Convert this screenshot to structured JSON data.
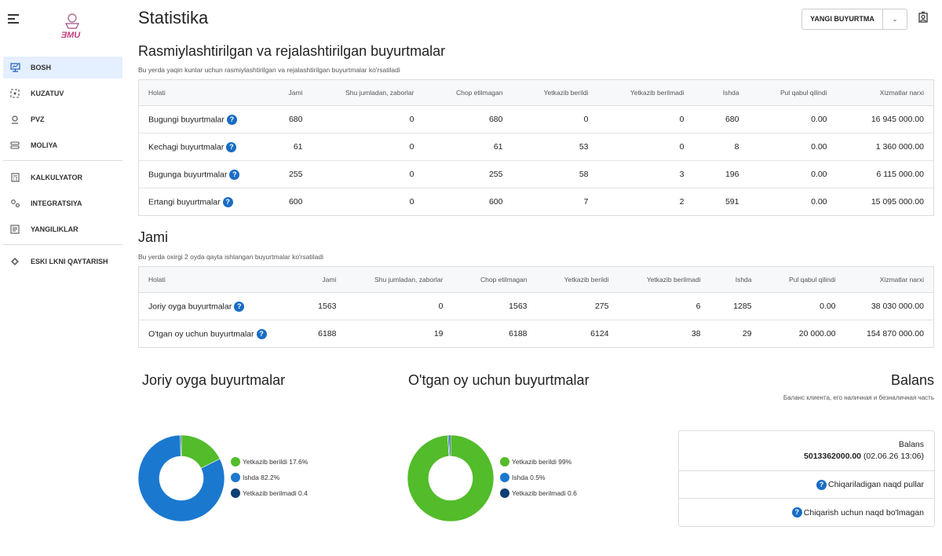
{
  "brand": {
    "logo_text": "EMU"
  },
  "sidebar": {
    "items": [
      {
        "label": "BOSH",
        "icon": "home-icon"
      },
      {
        "label": "KUZATUV",
        "icon": "tracking-icon"
      },
      {
        "label": "PVZ",
        "icon": "location-pin-icon"
      },
      {
        "label": "MOLIYA",
        "icon": "finance-icon"
      },
      {
        "label": "KALKULYATOR",
        "icon": "calculator-icon"
      },
      {
        "label": "INTEGRATSIYA",
        "icon": "integration-icon"
      },
      {
        "label": "YANGILIKLAR",
        "icon": "news-icon"
      },
      {
        "label": "ESKI LKNI QAYTARISH",
        "icon": "restore-icon"
      }
    ]
  },
  "header": {
    "title": "Statistika",
    "new_order_label": "YANGI BUYURTMA"
  },
  "section1": {
    "title": "Rasmiylashtirilgan va rejalashtirilgan buyurtmalar",
    "subtitle": "Bu yerda yaqin kunlar uchun rasmiylashtirilgan va rejalashtirilgan buyurtmalar ko'rsatiladi",
    "columns": [
      "Holati",
      "Jami",
      "Shu jumladan, zaborlar",
      "Chop etilmagan",
      "Yetkazib berildi",
      "Yetkazib berilmadi",
      "Ishda",
      "Pul qabul qilindi",
      "Xizmatlar narxi"
    ],
    "rows": [
      [
        "Bugungi buyurtmalar",
        "680",
        "0",
        "680",
        "0",
        "0",
        "680",
        "0.00",
        "16 945 000.00"
      ],
      [
        "Kechagi buyurtmalar",
        "61",
        "0",
        "61",
        "53",
        "0",
        "8",
        "0.00",
        "1 360 000.00"
      ],
      [
        "Bugunga buyurtmalar",
        "255",
        "0",
        "255",
        "58",
        "3",
        "196",
        "0.00",
        "6 115 000.00"
      ],
      [
        "Ertangi buyurtmalar",
        "600",
        "0",
        "600",
        "7",
        "2",
        "591",
        "0.00",
        "15 095 000.00"
      ]
    ]
  },
  "section2": {
    "title": "Jami",
    "subtitle": "Bu yerda oxirgi 2 oyda qayta ishlangan buyurtmalar ko'rsatiladi",
    "columns": [
      "Holati",
      "Jami",
      "Shu jumladan, zaborlar",
      "Chop etilmagan",
      "Yetkazib berildi",
      "Yetkazib berilmadi",
      "Ishda",
      "Pul qabul qilindi",
      "Xizmatlar narxi"
    ],
    "rows": [
      [
        "Joriy oyga buyurtmalar",
        "1563",
        "0",
        "1563",
        "275",
        "6",
        "1285",
        "0.00",
        "38 030 000.00"
      ],
      [
        "O'tgan oy uchun buyurtmalar",
        "6188",
        "19",
        "6188",
        "6124",
        "38",
        "29",
        "20 000.00",
        "154 870 000.00"
      ]
    ]
  },
  "chart_data": [
    {
      "type": "pie",
      "title": "Joriy oyga buyurtmalar",
      "slices": [
        {
          "name": "Yetkazib berildi",
          "value": 17.6,
          "label": "Yetkazib berildi 17.6%",
          "color": "#52bc2a"
        },
        {
          "name": "Ishda",
          "value": 82.2,
          "label": "Ishda 82.2%",
          "color": "#1b78cf"
        },
        {
          "name": "Yetkazib berilmadi",
          "value": 0.4,
          "label": "Yetkazib berilmadi 0.4",
          "color": "#0e3f73"
        }
      ]
    },
    {
      "type": "pie",
      "title": "O'tgan oy uchun buyurtmalar",
      "slices": [
        {
          "name": "Yetkazib berildi",
          "value": 99,
          "label": "Yetkazib berildi 99%",
          "color": "#52bc2a"
        },
        {
          "name": "Ishda",
          "value": 0.5,
          "label": "Ishda 0.5%",
          "color": "#1b78cf"
        },
        {
          "name": "Yetkazib berilmadi",
          "value": 0.6,
          "label": "Yetkazib berilmadi 0.6",
          "color": "#0e3f73"
        }
      ]
    }
  ],
  "balans": {
    "title": "Balans",
    "subtitle": "Баланс клиента, его наличная и безналичная часть",
    "label": "Balans",
    "amount": "5013362000.00",
    "date": "(02.06.26 13:06)",
    "cash_out": "Chiqariladigan naqd pullar",
    "non_cash": "Chiqarish uchun naqd bo'lmagan"
  }
}
